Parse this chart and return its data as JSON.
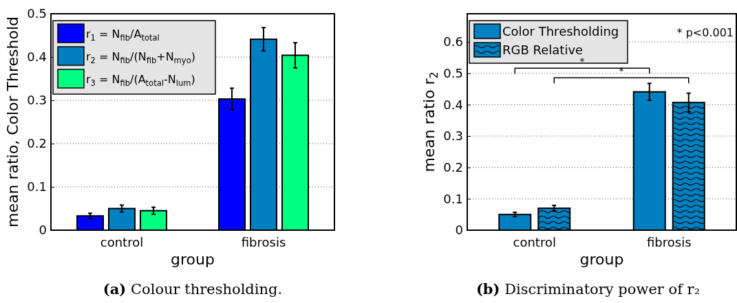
{
  "chart_data": [
    {
      "type": "bar",
      "title": "(a) Colour thresholding.",
      "xlabel": "group",
      "ylabel": "mean ratio, Color Threshold",
      "categories": [
        "control",
        "fibrosis"
      ],
      "series": [
        {
          "name": "r$_{1}$ = N$_{fib}$/A$_{total}$",
          "color": "#0000ff",
          "values": [
            0.033,
            0.303
          ],
          "errors": [
            0.006,
            0.025
          ]
        },
        {
          "name": "r$_{2}$ = N$_{fib}$/(N$_{fib}$+N$_{myo}$)",
          "color": "#0080c0",
          "values": [
            0.05,
            0.441
          ],
          "errors": [
            0.008,
            0.027
          ]
        },
        {
          "name": "r$_{3}$ = N$_{fib}$/(A$_{total}$-N$_{lum}$)",
          "color": "#00ff80",
          "values": [
            0.045,
            0.404
          ],
          "errors": [
            0.008,
            0.029
          ]
        }
      ],
      "ylim": [
        0,
        0.5
      ],
      "yticks": [
        0,
        0.1,
        0.2,
        0.3,
        0.4,
        0.5
      ],
      "grid": "y",
      "legend": "top left"
    },
    {
      "type": "bar",
      "title": "(b) Discriminatory power of r₂",
      "xlabel": "group",
      "ylabel": "mean ratio r$_{2}$",
      "categories": [
        "control",
        "fibrosis"
      ],
      "series": [
        {
          "name": "Color Thresholding",
          "color": "#0080c0",
          "values": [
            0.05,
            0.441
          ],
          "errors": [
            0.007,
            0.027
          ]
        },
        {
          "name": "RGB Relative",
          "color": "#0080c0",
          "values": [
            0.07,
            0.407
          ],
          "errors": [
            0.009,
            0.03
          ]
        }
      ],
      "ylim": [
        0,
        0.69
      ],
      "yticks": [
        0,
        0.1,
        0.2,
        0.3,
        0.4,
        0.5,
        0.6
      ],
      "grid": "y",
      "legend": "top left",
      "annotations": [
        "* p<0.001",
        "*",
        "*"
      ]
    }
  ]
}
